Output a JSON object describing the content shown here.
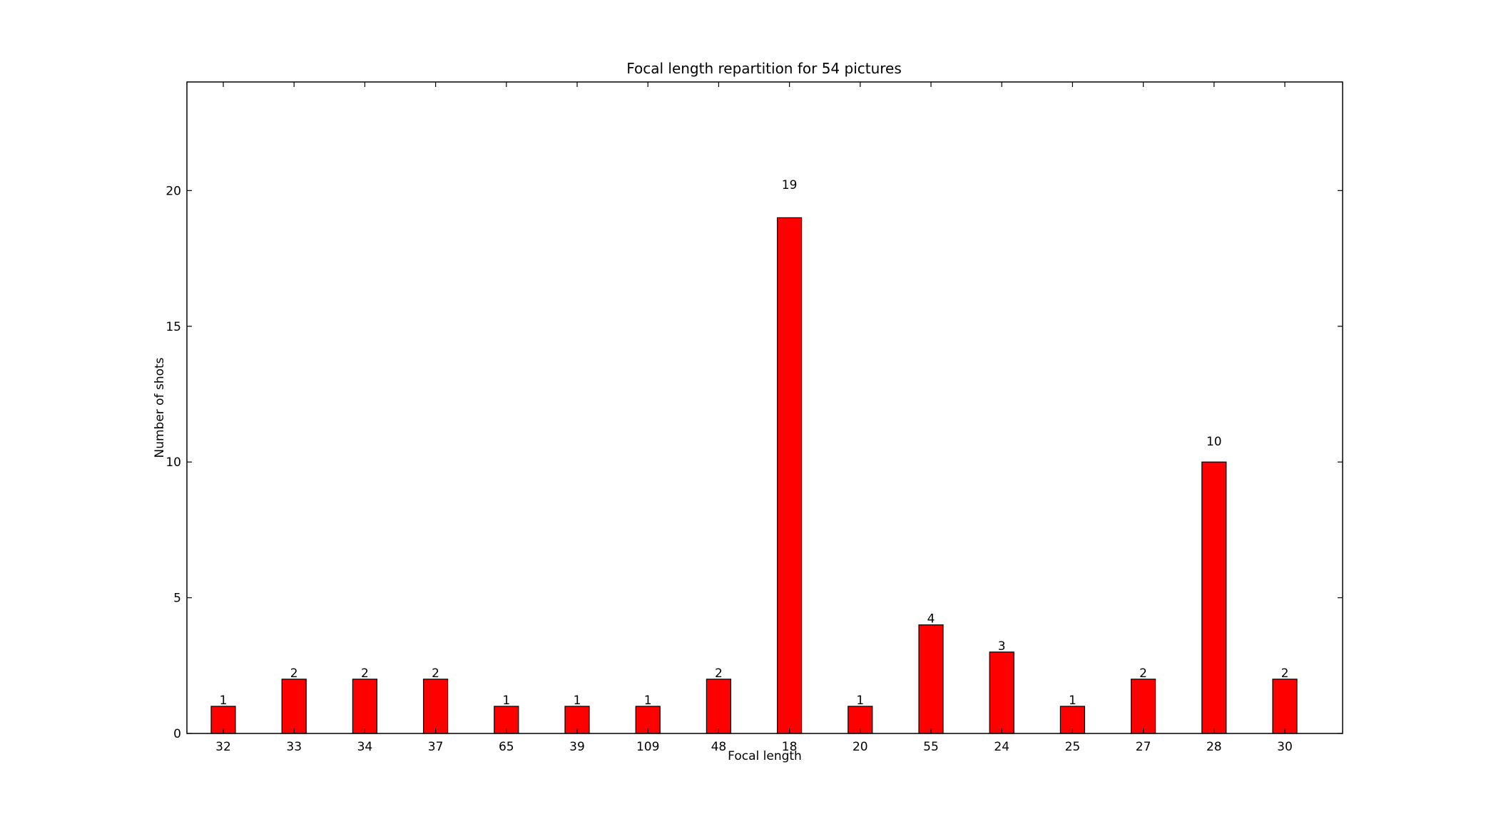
{
  "chart_data": {
    "type": "bar",
    "title": "Focal length repartition for 54 pictures",
    "xlabel": "Focal length",
    "ylabel": "Number of shots",
    "categories": [
      "32",
      "33",
      "34",
      "37",
      "65",
      "39",
      "109",
      "48",
      "18",
      "20",
      "55",
      "24",
      "25",
      "27",
      "28",
      "30"
    ],
    "values": [
      1,
      2,
      2,
      2,
      1,
      1,
      1,
      2,
      19,
      1,
      4,
      3,
      1,
      2,
      10,
      2
    ],
    "ylim": [
      0,
      24
    ],
    "yticks": [
      0,
      5,
      10,
      15,
      20
    ],
    "bar_color": "#ff0000",
    "edge_color": "#000000",
    "grid": false,
    "legend": false
  }
}
